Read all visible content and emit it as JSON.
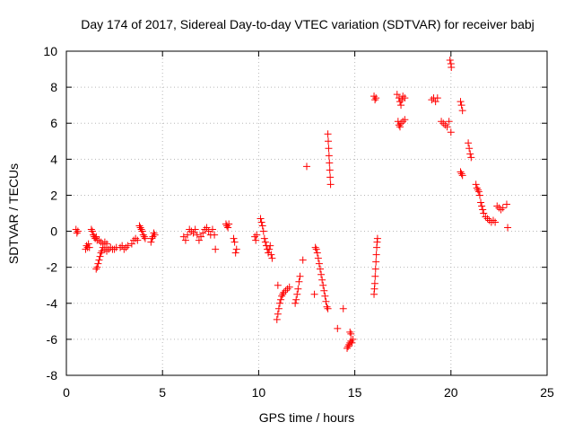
{
  "chart_data": {
    "type": "scatter",
    "title": "Day 174 of 2017, Sidereal Day-to-day VTEC variation (SDTVAR) for receiver babj",
    "xlabel": "GPS time / hours",
    "ylabel": "SDTVAR / TECUs",
    "xlim": [
      0,
      25
    ],
    "ylim": [
      -8,
      10
    ],
    "xticks": [
      0,
      5,
      10,
      15,
      20,
      25
    ],
    "yticks": [
      -8,
      -6,
      -4,
      -2,
      0,
      2,
      4,
      6,
      8,
      10
    ],
    "grid": true,
    "marker": "+",
    "series": [
      {
        "name": "SDTVAR",
        "color": "#ff0000",
        "points": [
          [
            0.5,
            0.1
          ],
          [
            0.55,
            -0.1
          ],
          [
            0.6,
            0.0
          ],
          [
            1.0,
            -1.0
          ],
          [
            1.05,
            -0.8
          ],
          [
            1.1,
            -0.9
          ],
          [
            1.15,
            -0.7
          ],
          [
            1.2,
            -0.9
          ],
          [
            1.3,
            0.1
          ],
          [
            1.35,
            0.0
          ],
          [
            1.4,
            -0.2
          ],
          [
            1.45,
            -0.3
          ],
          [
            1.5,
            -0.4
          ],
          [
            1.55,
            -0.3
          ],
          [
            1.6,
            -0.5
          ],
          [
            1.55,
            -2.1
          ],
          [
            1.6,
            -2.0
          ],
          [
            1.65,
            -1.8
          ],
          [
            1.7,
            -1.6
          ],
          [
            1.75,
            -1.4
          ],
          [
            1.8,
            -1.2
          ],
          [
            1.85,
            -1.1
          ],
          [
            1.9,
            -0.9
          ],
          [
            1.7,
            -0.5
          ],
          [
            1.8,
            -0.6
          ],
          [
            1.9,
            -0.7
          ],
          [
            2.0,
            -0.6
          ],
          [
            2.1,
            -0.7
          ],
          [
            2.0,
            -1.0
          ],
          [
            2.1,
            -1.1
          ],
          [
            2.2,
            -1.0
          ],
          [
            2.3,
            -0.9
          ],
          [
            2.4,
            -1.0
          ],
          [
            2.5,
            -1.0
          ],
          [
            2.6,
            -0.9
          ],
          [
            2.8,
            -0.9
          ],
          [
            2.9,
            -0.8
          ],
          [
            3.0,
            -1.0
          ],
          [
            3.1,
            -0.9
          ],
          [
            3.2,
            -0.8
          ],
          [
            3.4,
            -0.7
          ],
          [
            3.5,
            -0.5
          ],
          [
            3.6,
            -0.4
          ],
          [
            3.7,
            -0.5
          ],
          [
            3.8,
            0.3
          ],
          [
            3.85,
            0.2
          ],
          [
            3.9,
            0.1
          ],
          [
            3.95,
            0.0
          ],
          [
            4.0,
            -0.2
          ],
          [
            4.05,
            -0.3
          ],
          [
            4.1,
            -0.4
          ],
          [
            4.4,
            -0.6
          ],
          [
            4.45,
            -0.4
          ],
          [
            4.5,
            -0.3
          ],
          [
            4.55,
            -0.1
          ],
          [
            4.6,
            -0.2
          ],
          [
            6.1,
            -0.3
          ],
          [
            6.2,
            -0.5
          ],
          [
            6.3,
            -0.2
          ],
          [
            6.4,
            0.1
          ],
          [
            6.5,
            0.0
          ],
          [
            6.6,
            -0.1
          ],
          [
            6.7,
            0.1
          ],
          [
            6.8,
            -0.2
          ],
          [
            6.9,
            -0.5
          ],
          [
            7.0,
            -0.3
          ],
          [
            7.1,
            -0.1
          ],
          [
            7.2,
            0.1
          ],
          [
            7.3,
            0.2
          ],
          [
            7.4,
            0.0
          ],
          [
            7.5,
            -0.2
          ],
          [
            7.6,
            0.1
          ],
          [
            7.7,
            -0.2
          ],
          [
            7.75,
            -1.0
          ],
          [
            8.3,
            0.4
          ],
          [
            8.35,
            0.3
          ],
          [
            8.4,
            0.2
          ],
          [
            8.45,
            0.4
          ],
          [
            8.7,
            -0.4
          ],
          [
            8.75,
            -0.6
          ],
          [
            8.8,
            -1.2
          ],
          [
            8.85,
            -1.0
          ],
          [
            9.8,
            -0.3
          ],
          [
            9.85,
            -0.5
          ],
          [
            9.9,
            -0.2
          ],
          [
            10.1,
            0.7
          ],
          [
            10.15,
            0.5
          ],
          [
            10.2,
            0.3
          ],
          [
            10.25,
            0.0
          ],
          [
            10.3,
            -0.4
          ],
          [
            10.35,
            -0.6
          ],
          [
            10.4,
            -0.8
          ],
          [
            10.45,
            -1.0
          ],
          [
            10.5,
            -1.2
          ],
          [
            10.55,
            -1.0
          ],
          [
            10.6,
            -0.8
          ],
          [
            10.65,
            -1.3
          ],
          [
            10.7,
            -1.5
          ],
          [
            10.95,
            -4.9
          ],
          [
            11.0,
            -4.6
          ],
          [
            11.05,
            -4.3
          ],
          [
            11.1,
            -4.0
          ],
          [
            11.15,
            -3.8
          ],
          [
            11.2,
            -3.6
          ],
          [
            11.25,
            -3.5
          ],
          [
            11.3,
            -3.4
          ],
          [
            11.4,
            -3.3
          ],
          [
            11.5,
            -3.2
          ],
          [
            11.6,
            -3.1
          ],
          [
            11.0,
            -3.0
          ],
          [
            11.9,
            -4.0
          ],
          [
            11.95,
            -3.8
          ],
          [
            12.0,
            -3.5
          ],
          [
            12.05,
            -3.2
          ],
          [
            12.1,
            -2.8
          ],
          [
            12.15,
            -2.5
          ],
          [
            12.3,
            -1.6
          ],
          [
            12.5,
            3.6
          ],
          [
            12.9,
            -3.5
          ],
          [
            12.95,
            -0.9
          ],
          [
            13.0,
            -1.0
          ],
          [
            13.05,
            -1.2
          ],
          [
            13.1,
            -1.5
          ],
          [
            13.15,
            -1.8
          ],
          [
            13.2,
            -2.1
          ],
          [
            13.25,
            -2.4
          ],
          [
            13.3,
            -2.7
          ],
          [
            13.35,
            -3.0
          ],
          [
            13.4,
            -3.3
          ],
          [
            13.45,
            -3.6
          ],
          [
            13.5,
            -3.9
          ],
          [
            13.55,
            -4.2
          ],
          [
            13.6,
            -4.3
          ],
          [
            13.6,
            5.4
          ],
          [
            13.62,
            5.0
          ],
          [
            13.64,
            4.6
          ],
          [
            13.66,
            4.2
          ],
          [
            13.68,
            3.8
          ],
          [
            13.7,
            3.4
          ],
          [
            13.72,
            3.0
          ],
          [
            13.74,
            2.6
          ],
          [
            14.1,
            -5.4
          ],
          [
            14.4,
            -4.3
          ],
          [
            14.6,
            -6.5
          ],
          [
            14.65,
            -6.4
          ],
          [
            14.7,
            -6.3
          ],
          [
            14.75,
            -6.2
          ],
          [
            14.8,
            -6.1
          ],
          [
            14.85,
            -6.2
          ],
          [
            14.9,
            -6.0
          ],
          [
            14.75,
            -5.6
          ],
          [
            14.8,
            -5.7
          ],
          [
            16.0,
            7.5
          ],
          [
            16.05,
            7.3
          ],
          [
            16.1,
            7.4
          ],
          [
            16.0,
            -3.5
          ],
          [
            16.02,
            -3.2
          ],
          [
            16.04,
            -2.9
          ],
          [
            16.06,
            -2.5
          ],
          [
            16.08,
            -2.1
          ],
          [
            16.1,
            -1.7
          ],
          [
            16.12,
            -1.3
          ],
          [
            16.14,
            -0.9
          ],
          [
            16.16,
            -0.6
          ],
          [
            16.18,
            -0.4
          ],
          [
            17.2,
            7.6
          ],
          [
            17.3,
            7.4
          ],
          [
            17.35,
            7.2
          ],
          [
            17.4,
            7.0
          ],
          [
            17.45,
            7.3
          ],
          [
            17.5,
            7.5
          ],
          [
            17.6,
            7.4
          ],
          [
            17.25,
            6.1
          ],
          [
            17.3,
            5.9
          ],
          [
            17.35,
            5.8
          ],
          [
            17.4,
            6.0
          ],
          [
            17.5,
            6.1
          ],
          [
            17.6,
            6.2
          ],
          [
            19.0,
            7.3
          ],
          [
            19.1,
            7.4
          ],
          [
            19.2,
            7.2
          ],
          [
            19.3,
            7.4
          ],
          [
            19.5,
            6.1
          ],
          [
            19.6,
            6.0
          ],
          [
            19.7,
            5.9
          ],
          [
            19.8,
            5.8
          ],
          [
            19.9,
            6.1
          ],
          [
            20.0,
            5.5
          ],
          [
            19.95,
            9.5
          ],
          [
            20.0,
            9.3
          ],
          [
            20.02,
            9.1
          ],
          [
            20.5,
            7.2
          ],
          [
            20.55,
            7.0
          ],
          [
            20.6,
            6.7
          ],
          [
            20.5,
            3.3
          ],
          [
            20.55,
            3.2
          ],
          [
            20.6,
            3.1
          ],
          [
            20.9,
            4.9
          ],
          [
            20.95,
            4.6
          ],
          [
            21.0,
            4.3
          ],
          [
            21.05,
            4.1
          ],
          [
            21.3,
            2.6
          ],
          [
            21.35,
            2.4
          ],
          [
            21.4,
            2.3
          ],
          [
            21.45,
            2.2
          ],
          [
            21.5,
            2.0
          ],
          [
            21.55,
            1.6
          ],
          [
            21.6,
            1.4
          ],
          [
            21.65,
            1.2
          ],
          [
            21.7,
            1.0
          ],
          [
            21.8,
            0.8
          ],
          [
            21.9,
            0.7
          ],
          [
            22.0,
            0.6
          ],
          [
            22.1,
            0.5
          ],
          [
            22.2,
            0.6
          ],
          [
            22.3,
            0.5
          ],
          [
            22.4,
            1.4
          ],
          [
            22.5,
            1.3
          ],
          [
            22.6,
            1.2
          ],
          [
            22.7,
            1.3
          ],
          [
            22.9,
            1.5
          ],
          [
            22.95,
            0.2
          ]
        ]
      }
    ]
  }
}
